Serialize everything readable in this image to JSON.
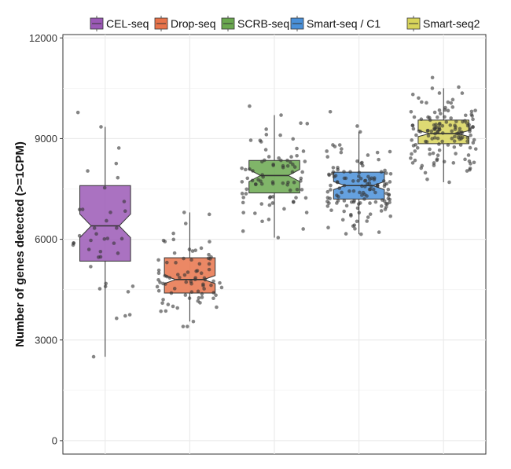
{
  "chart_data": {
    "type": "box",
    "title": "",
    "xlabel": "",
    "ylabel": "Number of genes detected (>=1CPM)",
    "ylim": [
      -400,
      12100
    ],
    "yticks": [
      0,
      3000,
      6000,
      9000,
      12000
    ],
    "grid": true,
    "notched": true,
    "legend_position": "top",
    "categories": [
      "CEL-seq",
      "Drop-seq",
      "SCRB-seq",
      "Smart-seq / C1",
      "Smart-seq2"
    ],
    "series": [
      {
        "name": "CEL-seq",
        "color": "#9b59b6",
        "whisker_low": 2500,
        "q1": 5350,
        "median": 6400,
        "q3": 7600,
        "whisker_high": 9350,
        "notch_low": 6050,
        "notch_high": 6750,
        "n_points": 38
      },
      {
        "name": "Drop-seq",
        "color": "#e8734a",
        "whisker_low": 3550,
        "q1": 4400,
        "median": 4800,
        "q3": 5450,
        "whisker_high": 6800,
        "notch_low": 4680,
        "notch_high": 4920,
        "n_points": 80
      },
      {
        "name": "SCRB-seq",
        "color": "#6aa84f",
        "whisker_low": 6050,
        "q1": 7380,
        "median": 7900,
        "q3": 8350,
        "whisker_high": 9700,
        "notch_low": 7720,
        "notch_high": 8080,
        "n_points": 80
      },
      {
        "name": "Smart-seq / C1",
        "color": "#4a90d9",
        "whisker_low": 6150,
        "q1": 7200,
        "median": 7600,
        "q3": 8000,
        "whisker_high": 9200,
        "notch_low": 7480,
        "notch_high": 7720,
        "n_points": 130
      },
      {
        "name": "Smart-seq2",
        "color": "#d8d45a",
        "whisker_low": 7700,
        "q1": 8850,
        "median": 9150,
        "q3": 9550,
        "whisker_high": 10500,
        "notch_low": 9060,
        "notch_high": 9240,
        "n_points": 140
      }
    ]
  }
}
